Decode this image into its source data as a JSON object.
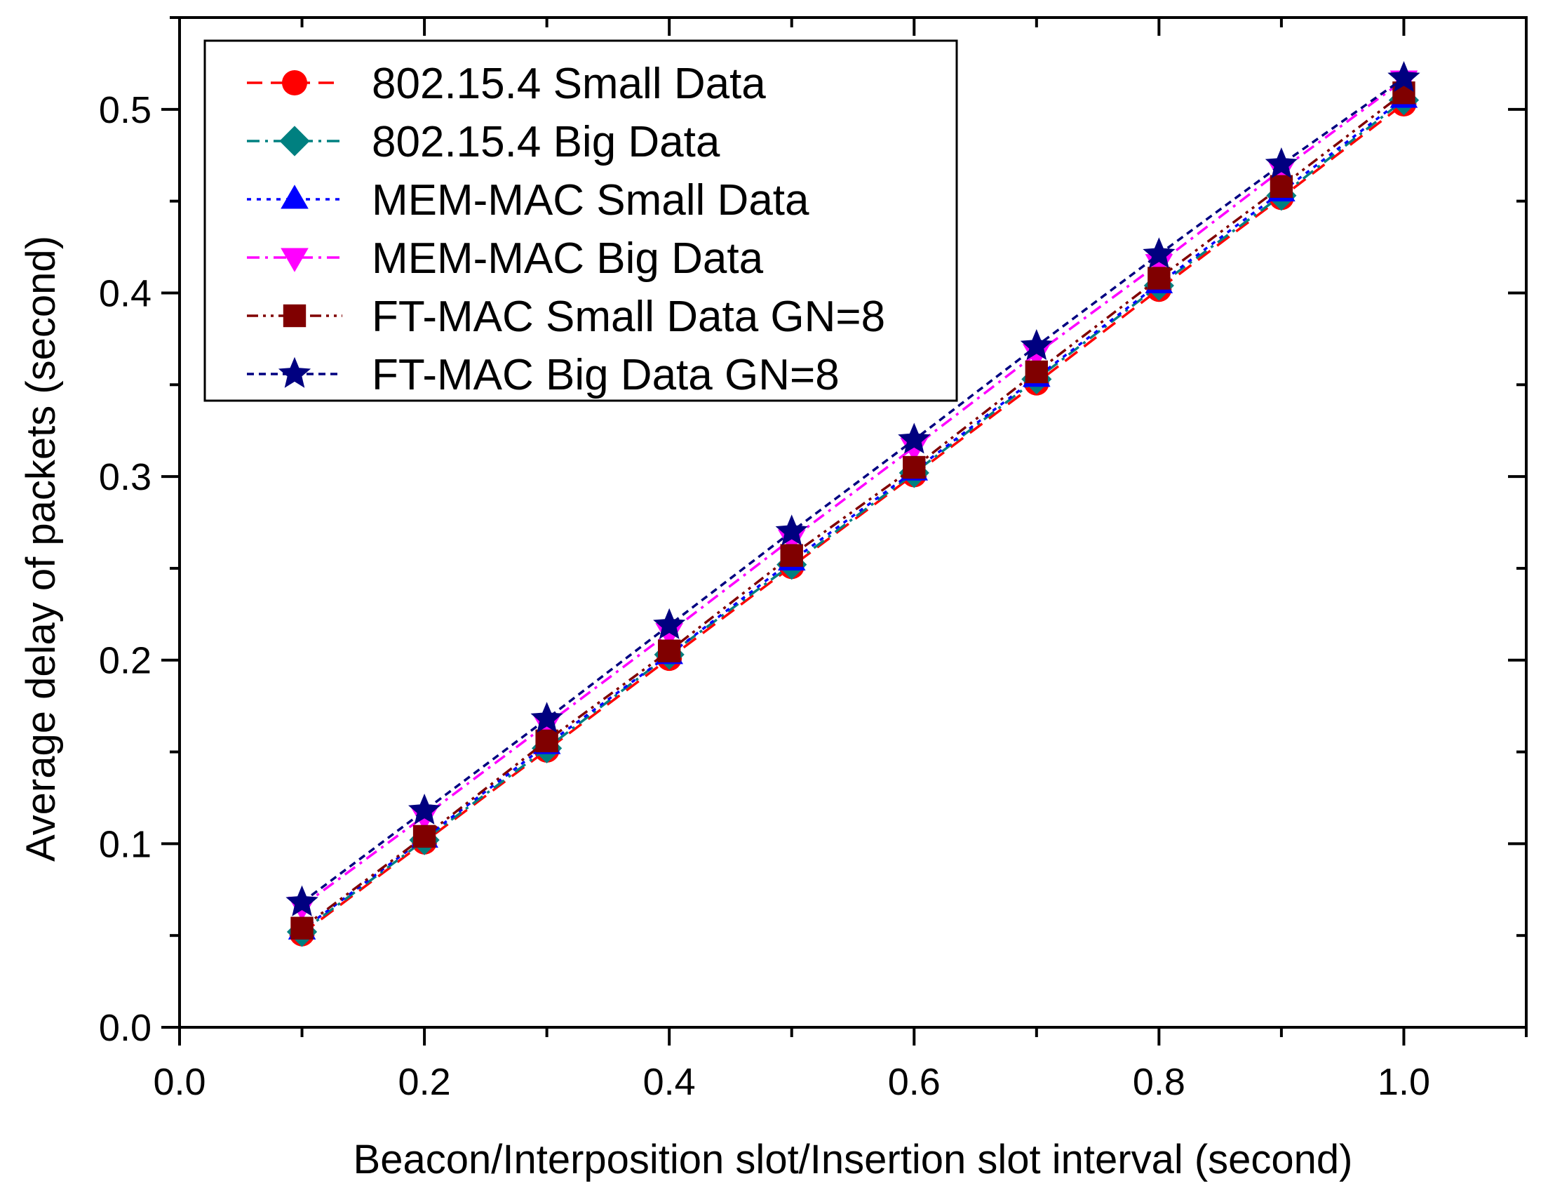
{
  "chart_data": {
    "type": "line",
    "title": "",
    "xlabel": "Beacon/Interposition slot/Insertion slot interval (second)",
    "ylabel": "Average delay of packets (second)",
    "xlim": [
      0.0,
      1.1
    ],
    "ylim": [
      0.0,
      0.55
    ],
    "x_ticks": [
      "0.0",
      "0.2",
      "0.4",
      "0.6",
      "0.8",
      "1.0"
    ],
    "y_ticks": [
      "0.0",
      "0.1",
      "0.2",
      "0.3",
      "0.4",
      "0.5"
    ],
    "grid": false,
    "legend_position": "top-left",
    "x": [
      0.1,
      0.2,
      0.3,
      0.4,
      0.5,
      0.6,
      0.7,
      0.8,
      0.9,
      1.0
    ],
    "series": [
      {
        "name": "802.15.4 Small Data",
        "color": "#ff0000",
        "marker": "circle",
        "dash": "dash",
        "values": [
          0.051,
          0.101,
          0.151,
          0.201,
          0.251,
          0.301,
          0.351,
          0.402,
          0.452,
          0.503
        ]
      },
      {
        "name": "802.15.4 Big Data",
        "color": "#008080",
        "marker": "diamond",
        "dash": "dashdot",
        "values": [
          0.052,
          0.102,
          0.152,
          0.203,
          0.252,
          0.302,
          0.353,
          0.404,
          0.453,
          0.505
        ]
      },
      {
        "name": "MEM-MAC Small Data",
        "color": "#0000ff",
        "marker": "triangle-up",
        "dash": "dot",
        "values": [
          0.053,
          0.103,
          0.154,
          0.203,
          0.254,
          0.303,
          0.354,
          0.405,
          0.455,
          0.506
        ]
      },
      {
        "name": "MEM-MAC Big Data",
        "color": "#ff00ff",
        "marker": "triangle-down",
        "dash": "dashdot",
        "values": [
          0.066,
          0.115,
          0.165,
          0.215,
          0.266,
          0.316,
          0.367,
          0.416,
          0.467,
          0.516
        ]
      },
      {
        "name": "FT-MAC Small Data GN=8",
        "color": "#800000",
        "marker": "square",
        "dash": "dashdotdot",
        "values": [
          0.054,
          0.104,
          0.156,
          0.205,
          0.257,
          0.305,
          0.357,
          0.408,
          0.458,
          0.509
        ]
      },
      {
        "name": "FT-MAC Big Data GN=8",
        "color": "#000080",
        "marker": "star",
        "dash": "shortdash",
        "values": [
          0.068,
          0.118,
          0.168,
          0.219,
          0.27,
          0.32,
          0.371,
          0.421,
          0.47,
          0.517
        ]
      }
    ]
  }
}
